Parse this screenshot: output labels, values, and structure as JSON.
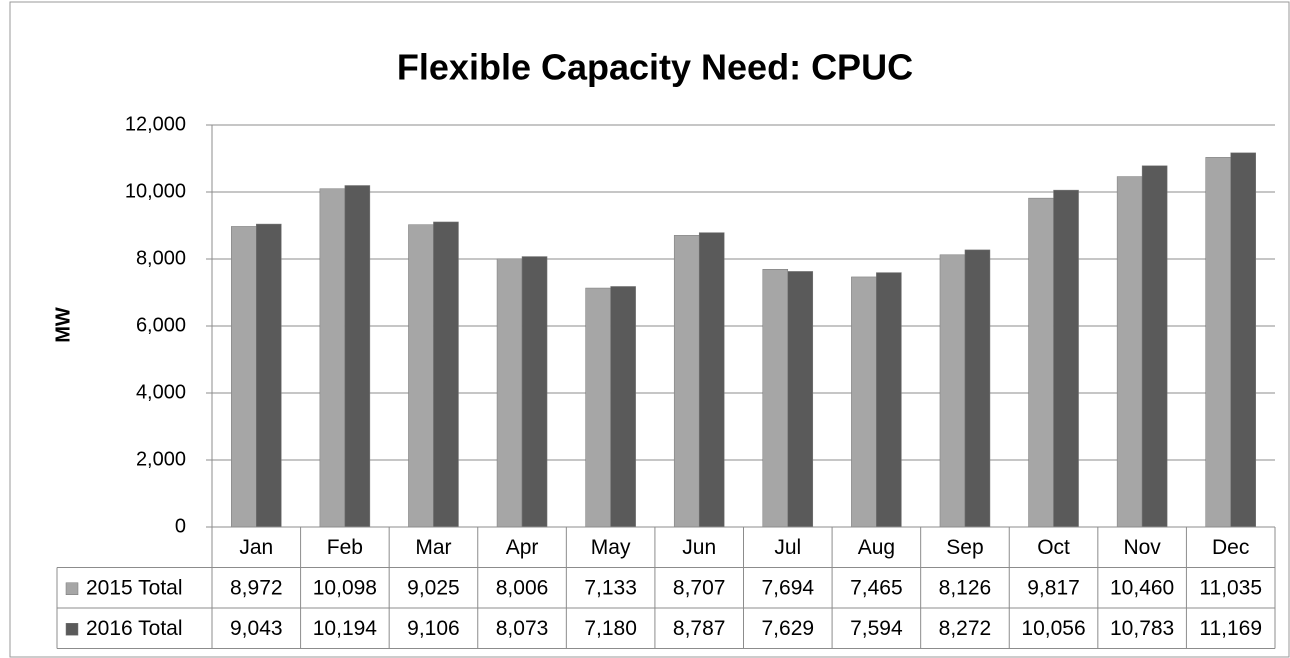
{
  "chart_data": {
    "type": "bar",
    "title": "Flexible Capacity Need: CPUC",
    "y_axis_label": "MW",
    "categories": [
      "Jan",
      "Feb",
      "Mar",
      "Apr",
      "May",
      "Jun",
      "Jul",
      "Aug",
      "Sep",
      "Oct",
      "Nov",
      "Dec"
    ],
    "series": [
      {
        "name": "2015 Total",
        "color": "#a6a6a6",
        "values": [
          8972,
          10098,
          9025,
          8006,
          7133,
          8707,
          7694,
          7465,
          8126,
          9817,
          10460,
          11035
        ],
        "value_labels": [
          "8,972",
          "10,098",
          "9,025",
          "8,006",
          "7,133",
          "8,707",
          "7,694",
          "7,465",
          "8,126",
          "9,817",
          "10,460",
          "11,035"
        ]
      },
      {
        "name": "2016 Total",
        "color": "#5a5a5a",
        "values": [
          9043,
          10194,
          9106,
          8073,
          7180,
          8787,
          7629,
          7594,
          8272,
          10056,
          10783,
          11169
        ],
        "value_labels": [
          "9,043",
          "10,194",
          "9,106",
          "8,073",
          "7,180",
          "8,787",
          "7,629",
          "7,594",
          "8,272",
          "10,056",
          "10,783",
          "11,169"
        ]
      }
    ],
    "ylim": [
      0,
      12000
    ],
    "yticks": [
      0,
      {
        "value": 2000,
        "label": "2,000"
      },
      {
        "value": 4000,
        "label": "4,000"
      },
      {
        "value": 6000,
        "label": "6,000"
      },
      {
        "value": 8000,
        "label": "8,000"
      },
      {
        "value": 10000,
        "label": "10,000"
      },
      {
        "value": 12000,
        "label": "12,000"
      }
    ],
    "grid": true
  }
}
